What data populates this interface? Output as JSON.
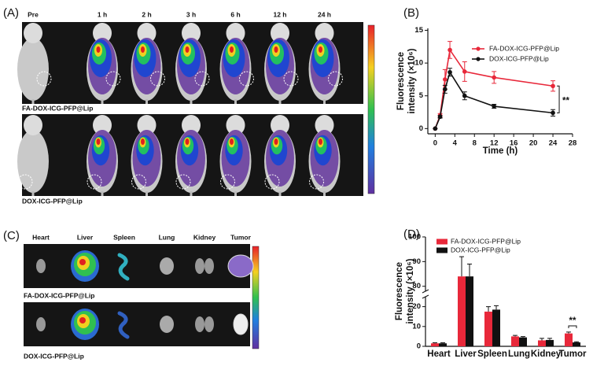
{
  "panel_labels": [
    "(A)",
    "(B)",
    "(C)",
    "(D)"
  ],
  "imaging": {
    "times": [
      "Pre",
      "1 h",
      "2 h",
      "3 h",
      "6 h",
      "12 h",
      "24 h"
    ],
    "groups": [
      "FA-DOX-ICG-PFP@Lip",
      "DOX-ICG-PFP@Lip"
    ]
  },
  "ex_vivo": {
    "organs": [
      "Heart",
      "Liver",
      "Spleen",
      "Lung",
      "Kidney",
      "Tumor"
    ],
    "groups": [
      "FA-DOX-ICG-PFP@Lip",
      "DOX-ICG-PFP@Lip"
    ]
  },
  "chart_data": [
    {
      "type": "line",
      "xlabel": "Time (h)",
      "ylabel": [
        "Fluorescence",
        "intensity (×10⁶)"
      ],
      "x": [
        0,
        1,
        2,
        3,
        6,
        12,
        24
      ],
      "xlim": [
        -1.5,
        28
      ],
      "xticks": [
        0,
        4,
        8,
        12,
        16,
        20,
        24,
        28
      ],
      "ylim": [
        -0.8,
        15.3
      ],
      "yticks": [
        0,
        5,
        10,
        15
      ],
      "series": [
        {
          "name": "FA-DOX-ICG-PFP@Lip",
          "color": "#e8283a",
          "values": [
            0,
            2,
            7.5,
            12,
            8.7,
            7.8,
            6.5
          ],
          "errors": [
            0,
            0.3,
            1.5,
            1.3,
            1.5,
            0.9,
            0.8
          ]
        },
        {
          "name": "DOX-ICG-PFP@Lip",
          "color": "#111111",
          "values": [
            0,
            1.8,
            6,
            8.6,
            5,
            3.4,
            2.4
          ],
          "errors": [
            0,
            0.2,
            0.6,
            0.6,
            0.6,
            0.3,
            0.5
          ]
        }
      ],
      "legend": "upper right",
      "annotation": "**"
    },
    {
      "type": "bar",
      "ylabel": [
        "Fluorescence",
        "intensity (×10⁶)"
      ],
      "categories": [
        "Heart",
        "Liver",
        "Spleen",
        "Lung",
        "Kidney",
        "Tumor"
      ],
      "segments": [
        {
          "ylim": [
            0,
            25
          ],
          "yticks": [
            0,
            10,
            20
          ]
        },
        {
          "ylim": [
            78,
            100
          ],
          "yticks": [
            80,
            90,
            100
          ]
        }
      ],
      "series": [
        {
          "name": "FA-DOX-ICG-PFP@Lip",
          "color": "#e8283a",
          "values": [
            1.5,
            84,
            17.5,
            5,
            3,
            6.5
          ],
          "errors": [
            0.3,
            8,
            2.5,
            0.5,
            1,
            0.7
          ]
        },
        {
          "name": "DOX-ICG-PFP@Lip",
          "color": "#111111",
          "values": [
            1.5,
            84,
            18.5,
            4.5,
            3.2,
            2
          ],
          "errors": [
            0.3,
            5,
            2,
            0.4,
            0.8,
            0.3
          ]
        }
      ],
      "legend": "upper left",
      "annotation": "**"
    }
  ]
}
